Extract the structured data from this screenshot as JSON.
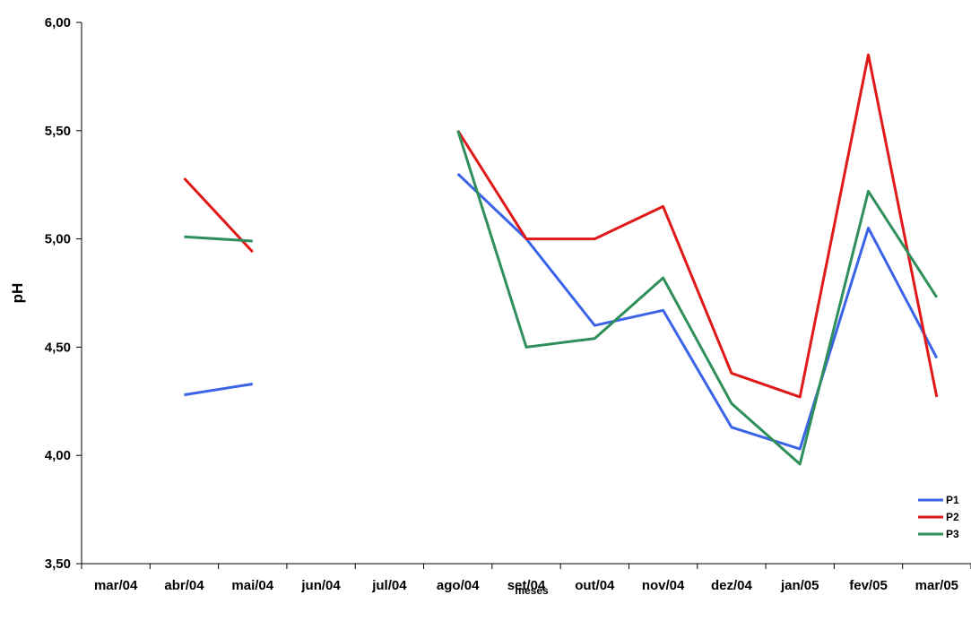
{
  "chart_data": {
    "type": "line",
    "title": "",
    "xlabel": "meses",
    "ylabel": "pH",
    "ylim": [
      3.5,
      6.0
    ],
    "yticks": [
      "3,50",
      "4,00",
      "4,50",
      "5,00",
      "5,50",
      "6,00"
    ],
    "ytick_values": [
      3.5,
      4.0,
      4.5,
      5.0,
      5.5,
      6.0
    ],
    "categories": [
      "mar/04",
      "abr/04",
      "mai/04",
      "jun/04",
      "jul/04",
      "ago/04",
      "set/04",
      "out/04",
      "nov/04",
      "dez/04",
      "jan/05",
      "fev/05",
      "mar/05"
    ],
    "series": [
      {
        "name": "P1",
        "color": "#3a63e8",
        "values": [
          null,
          4.28,
          4.33,
          null,
          null,
          5.3,
          5.0,
          4.6,
          4.67,
          4.13,
          4.03,
          5.05,
          4.45
        ]
      },
      {
        "name": "P2",
        "color": "#e01818",
        "values": [
          null,
          5.28,
          4.94,
          null,
          null,
          5.5,
          5.0,
          5.0,
          5.15,
          4.38,
          4.27,
          5.85,
          4.27
        ]
      },
      {
        "name": "P3",
        "color": "#2e8f5a",
        "values": [
          null,
          5.01,
          4.99,
          null,
          null,
          5.5,
          4.5,
          4.54,
          4.82,
          4.24,
          3.96,
          5.22,
          4.73
        ]
      }
    ],
    "grid": false,
    "legend_position": "bottom-right"
  }
}
